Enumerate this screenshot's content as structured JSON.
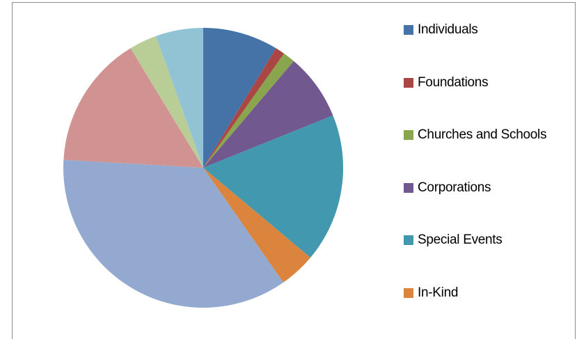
{
  "chart_data": {
    "type": "pie",
    "unit": "percent",
    "series": [
      {
        "slices": [
          {
            "label": "Individuals",
            "value": 8.7,
            "color": "#4572a7"
          },
          {
            "label": "Foundations",
            "value": 1.1,
            "color": "#aa4643"
          },
          {
            "label": "Churches and Schools",
            "value": 1.4,
            "color": "#89a54e"
          },
          {
            "label": "Corporations",
            "value": 7.7,
            "color": "#71588f"
          },
          {
            "label": "Special Events",
            "value": 17.2,
            "color": "#4198af"
          },
          {
            "label": "In-Kind",
            "value": 4.2,
            "color": "#db843d"
          },
          {
            "label": "",
            "value": 35.6,
            "color": "#93a9cf"
          },
          {
            "label": "",
            "value": 15.4,
            "color": "#d19392"
          },
          {
            "label": "",
            "value": 3.2,
            "color": "#b9cd96"
          },
          {
            "label": "",
            "value": 5.5,
            "color": "#92c3d4"
          }
        ]
      }
    ],
    "legend": {
      "position": "right",
      "entries": [
        "Individuals",
        "Foundations",
        "Churches and Schools",
        "Corporations",
        "Special Events",
        "In-Kind"
      ]
    }
  }
}
